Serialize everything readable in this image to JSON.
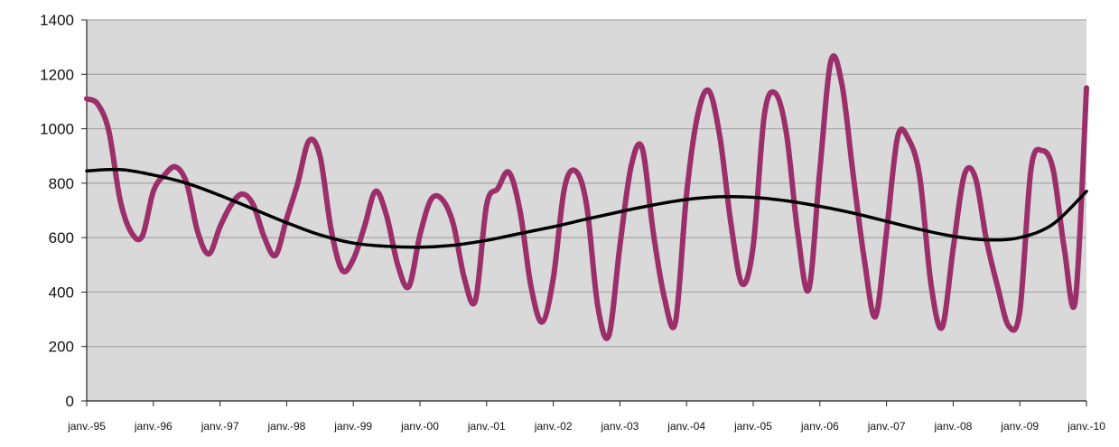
{
  "chart_data": {
    "type": "line",
    "title": "",
    "xlabel": "",
    "ylabel": "",
    "ylim": [
      0,
      1400
    ],
    "yticks": [
      0,
      200,
      400,
      600,
      800,
      1000,
      1200,
      1400
    ],
    "xlim": [
      "1995-01",
      "2010-01"
    ],
    "x_tick_labels": [
      "janv.-95",
      "janv.-96",
      "janv.-97",
      "janv.-98",
      "janv.-99",
      "janv.-00",
      "janv.-01",
      "janv.-02",
      "janv.-03",
      "janv.-04",
      "janv.-05",
      "janv.-06",
      "janv.-07",
      "janv.-08",
      "janv.-09",
      "janv.-10"
    ],
    "grid": true,
    "legend": "none",
    "plot_background": "#d9d9d9",
    "series": [
      {
        "color": "#9b2f6a",
        "points": [
          [
            "1995-01",
            1110
          ],
          [
            "1995-03",
            1090
          ],
          [
            "1995-05",
            990
          ],
          [
            "1995-07",
            740
          ],
          [
            "1995-09",
            620
          ],
          [
            "1995-11",
            605
          ],
          [
            "1996-01",
            770
          ],
          [
            "1996-03",
            830
          ],
          [
            "1996-05",
            860
          ],
          [
            "1996-07",
            800
          ],
          [
            "1996-09",
            620
          ],
          [
            "1996-11",
            540
          ],
          [
            "1997-01",
            640
          ],
          [
            "1997-03",
            720
          ],
          [
            "1997-05",
            760
          ],
          [
            "1997-07",
            720
          ],
          [
            "1997-09",
            600
          ],
          [
            "1997-11",
            535
          ],
          [
            "1998-01",
            670
          ],
          [
            "1998-03",
            800
          ],
          [
            "1998-05",
            955
          ],
          [
            "1998-07",
            900
          ],
          [
            "1998-09",
            630
          ],
          [
            "1998-11",
            480
          ],
          [
            "1999-01",
            520
          ],
          [
            "1999-03",
            640
          ],
          [
            "1999-05",
            770
          ],
          [
            "1999-07",
            680
          ],
          [
            "1999-09",
            500
          ],
          [
            "1999-11",
            420
          ],
          [
            "2000-01",
            610
          ],
          [
            "2000-03",
            740
          ],
          [
            "2000-05",
            740
          ],
          [
            "2000-07",
            650
          ],
          [
            "2000-09",
            450
          ],
          [
            "2000-11",
            370
          ],
          [
            "2001-01",
            720
          ],
          [
            "2001-03",
            780
          ],
          [
            "2001-05",
            840
          ],
          [
            "2001-07",
            700
          ],
          [
            "2001-09",
            420
          ],
          [
            "2001-11",
            290
          ],
          [
            "2002-01",
            450
          ],
          [
            "2002-03",
            780
          ],
          [
            "2002-05",
            845
          ],
          [
            "2002-07",
            720
          ],
          [
            "2002-09",
            350
          ],
          [
            "2002-11",
            240
          ],
          [
            "2003-01",
            570
          ],
          [
            "2003-03",
            860
          ],
          [
            "2003-05",
            930
          ],
          [
            "2003-07",
            620
          ],
          [
            "2003-09",
            380
          ],
          [
            "2003-11",
            290
          ],
          [
            "2004-01",
            760
          ],
          [
            "2004-03",
            1050
          ],
          [
            "2004-05",
            1140
          ],
          [
            "2004-07",
            970
          ],
          [
            "2004-09",
            650
          ],
          [
            "2004-11",
            430
          ],
          [
            "2005-01",
            570
          ],
          [
            "2005-03",
            1050
          ],
          [
            "2005-05",
            1130
          ],
          [
            "2005-07",
            980
          ],
          [
            "2005-09",
            620
          ],
          [
            "2005-11",
            410
          ],
          [
            "2006-01",
            850
          ],
          [
            "2006-03",
            1250
          ],
          [
            "2006-05",
            1160
          ],
          [
            "2006-07",
            830
          ],
          [
            "2006-09",
            520
          ],
          [
            "2006-11",
            310
          ],
          [
            "2007-01",
            620
          ],
          [
            "2007-03",
            970
          ],
          [
            "2007-05",
            960
          ],
          [
            "2007-07",
            820
          ],
          [
            "2007-09",
            430
          ],
          [
            "2007-11",
            270
          ],
          [
            "2008-01",
            560
          ],
          [
            "2008-03",
            830
          ],
          [
            "2008-05",
            820
          ],
          [
            "2008-07",
            590
          ],
          [
            "2008-09",
            420
          ],
          [
            "2008-11",
            275
          ],
          [
            "2009-01",
            330
          ],
          [
            "2009-03",
            850
          ],
          [
            "2009-05",
            920
          ],
          [
            "2009-07",
            850
          ],
          [
            "2009-09",
            560
          ],
          [
            "2009-11",
            370
          ],
          [
            "2010-01",
            1150
          ]
        ]
      },
      {
        "color": "#000000",
        "points": [
          [
            "1995-01",
            845
          ],
          [
            "1995-07",
            850
          ],
          [
            "1996-01",
            830
          ],
          [
            "1996-07",
            800
          ],
          [
            "1997-01",
            755
          ],
          [
            "1997-07",
            705
          ],
          [
            "1998-01",
            655
          ],
          [
            "1998-07",
            610
          ],
          [
            "1999-01",
            580
          ],
          [
            "1999-07",
            568
          ],
          [
            "2000-01",
            565
          ],
          [
            "2000-07",
            572
          ],
          [
            "2001-01",
            590
          ],
          [
            "2001-07",
            615
          ],
          [
            "2002-01",
            640
          ],
          [
            "2002-07",
            668
          ],
          [
            "2003-01",
            695
          ],
          [
            "2003-07",
            720
          ],
          [
            "2004-01",
            740
          ],
          [
            "2004-07",
            750
          ],
          [
            "2005-01",
            748
          ],
          [
            "2005-07",
            735
          ],
          [
            "2006-01",
            715
          ],
          [
            "2006-07",
            690
          ],
          [
            "2007-01",
            660
          ],
          [
            "2007-07",
            630
          ],
          [
            "2008-01",
            605
          ],
          [
            "2008-07",
            592
          ],
          [
            "2009-01",
            600
          ],
          [
            "2009-07",
            650
          ],
          [
            "2010-01",
            770
          ]
        ]
      }
    ]
  }
}
